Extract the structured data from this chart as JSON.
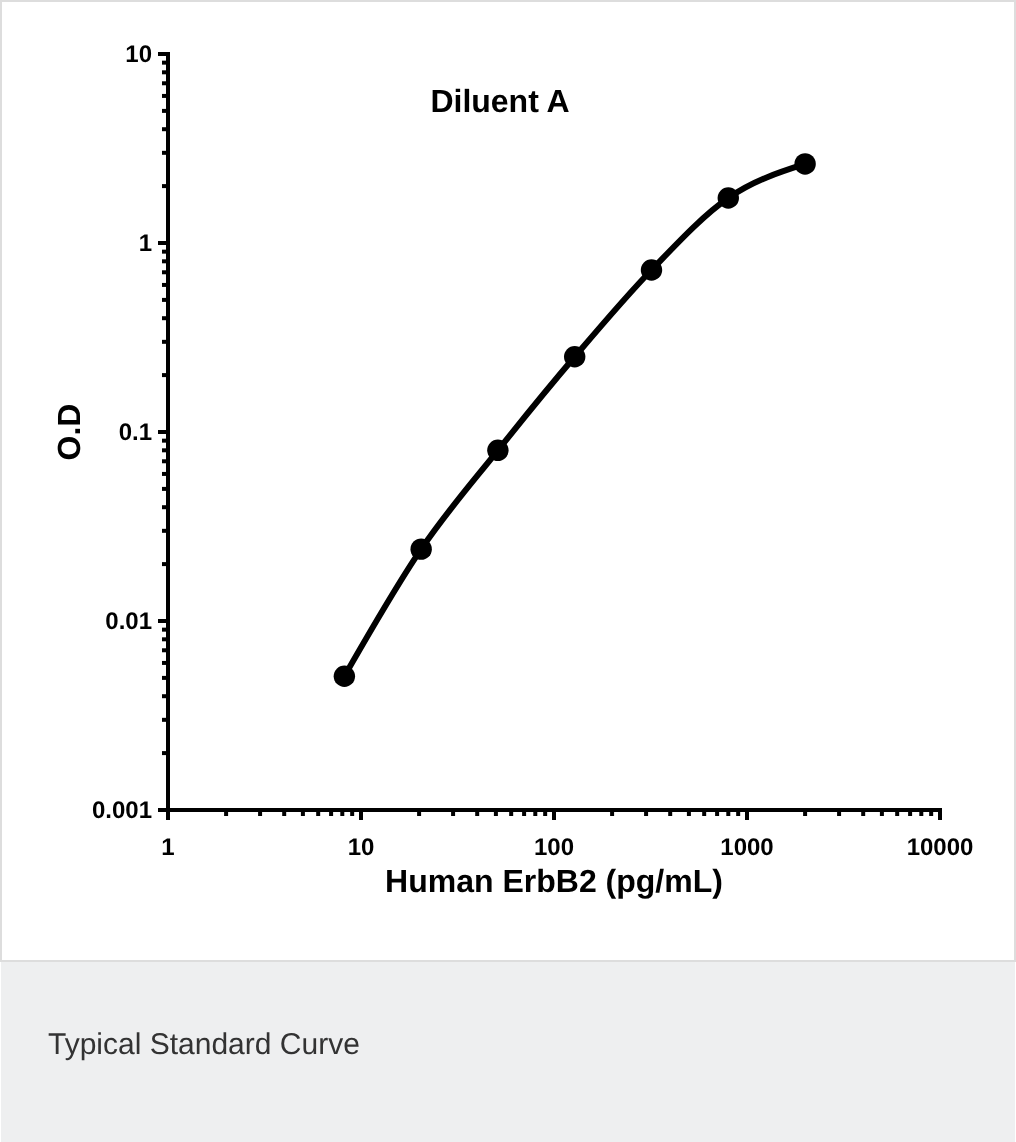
{
  "chart_data": {
    "type": "line",
    "title": "Diluent A",
    "xlabel": "Human ErbB2 (pg/mL)",
    "ylabel": "O.D",
    "annotations": [
      "Typical Standard Curve"
    ],
    "x": [
      8.2,
      20.5,
      51.2,
      128,
      320,
      800,
      2000
    ],
    "series": [
      {
        "color": "#000000",
        "values": [
          0.0051,
          0.024,
          0.08,
          0.25,
          0.72,
          1.73,
          2.62
        ]
      }
    ],
    "log": "xy",
    "xlim": [
      1,
      10000
    ],
    "ylim": [
      0.001,
      10
    ],
    "xticks": [
      1,
      10,
      100,
      1000,
      10000
    ],
    "yticks": [
      0.001,
      0.01,
      0.1,
      1,
      10
    ],
    "grid": false,
    "marker": "circle",
    "line_style": "solid"
  }
}
